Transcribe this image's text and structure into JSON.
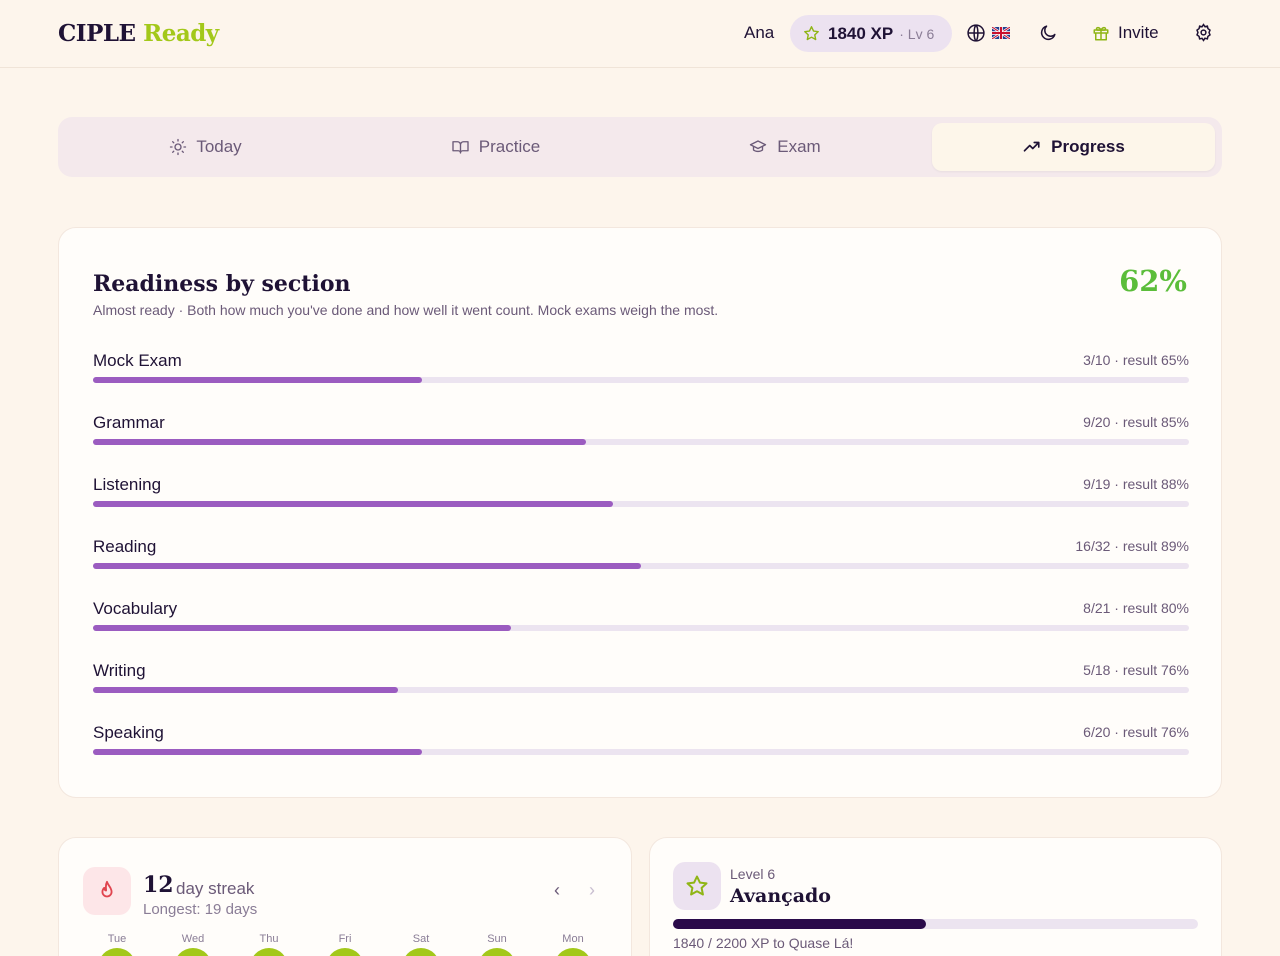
{
  "header": {
    "logo_a": "CIPLE",
    "logo_b": "Ready",
    "user": "Ana",
    "xp": "1840 XP",
    "level": "· Lv 6",
    "invite": "Invite"
  },
  "tabs": [
    {
      "label": "Today",
      "icon": "sun-icon"
    },
    {
      "label": "Practice",
      "icon": "book-open-icon"
    },
    {
      "label": "Exam",
      "icon": "graduation-cap-icon"
    },
    {
      "label": "Progress",
      "icon": "trending-up-icon",
      "active": true
    }
  ],
  "readiness": {
    "title": "Readiness by section",
    "subtitle": "Almost ready · Both how much you've done and how well it went count. Mock exams weigh the most.",
    "percent": "62%",
    "sections": [
      {
        "name": "Mock Exam",
        "stat": "3/10 · result 65%",
        "progress": 0.3
      },
      {
        "name": "Grammar",
        "stat": "9/20 · result 85%",
        "progress": 0.45
      },
      {
        "name": "Listening",
        "stat": "9/19 · result 88%",
        "progress": 0.474
      },
      {
        "name": "Reading",
        "stat": "16/32 · result 89%",
        "progress": 0.5
      },
      {
        "name": "Vocabulary",
        "stat": "8/21 · result 80%",
        "progress": 0.381
      },
      {
        "name": "Writing",
        "stat": "5/18 · result 76%",
        "progress": 0.278
      },
      {
        "name": "Speaking",
        "stat": "6/20 · result 76%",
        "progress": 0.3
      }
    ]
  },
  "streak": {
    "count": "12",
    "label": "day streak",
    "longest": "Longest: 19 days",
    "days": [
      "Tue",
      "Wed",
      "Thu",
      "Fri",
      "Sat",
      "Sun",
      "Mon"
    ]
  },
  "level_card": {
    "level": "Level 6",
    "name": "Avançado",
    "xp_text": "1840 / 2200 XP to Quase Lá!",
    "progress": 0.4818
  },
  "colors": {
    "accent": "#a3c81a",
    "bar": "#9b5cc0",
    "ready": "#5bbd3a"
  }
}
